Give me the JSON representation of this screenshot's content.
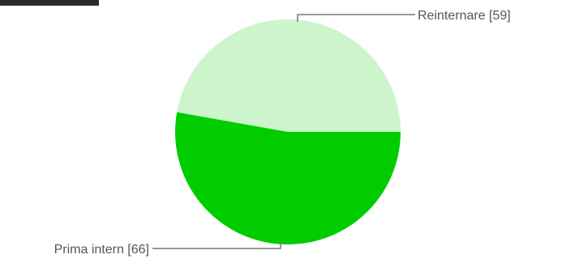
{
  "chart_data": {
    "type": "pie",
    "title": "",
    "slices": [
      {
        "label": "Reinternare [59]",
        "name": "Reinternare",
        "value": 59,
        "color": "#ccf5cc"
      },
      {
        "label": "Prima intern [66]",
        "name": "Prima intern",
        "value": 66,
        "color": "#00cc00"
      }
    ],
    "legend": "callout labels"
  }
}
